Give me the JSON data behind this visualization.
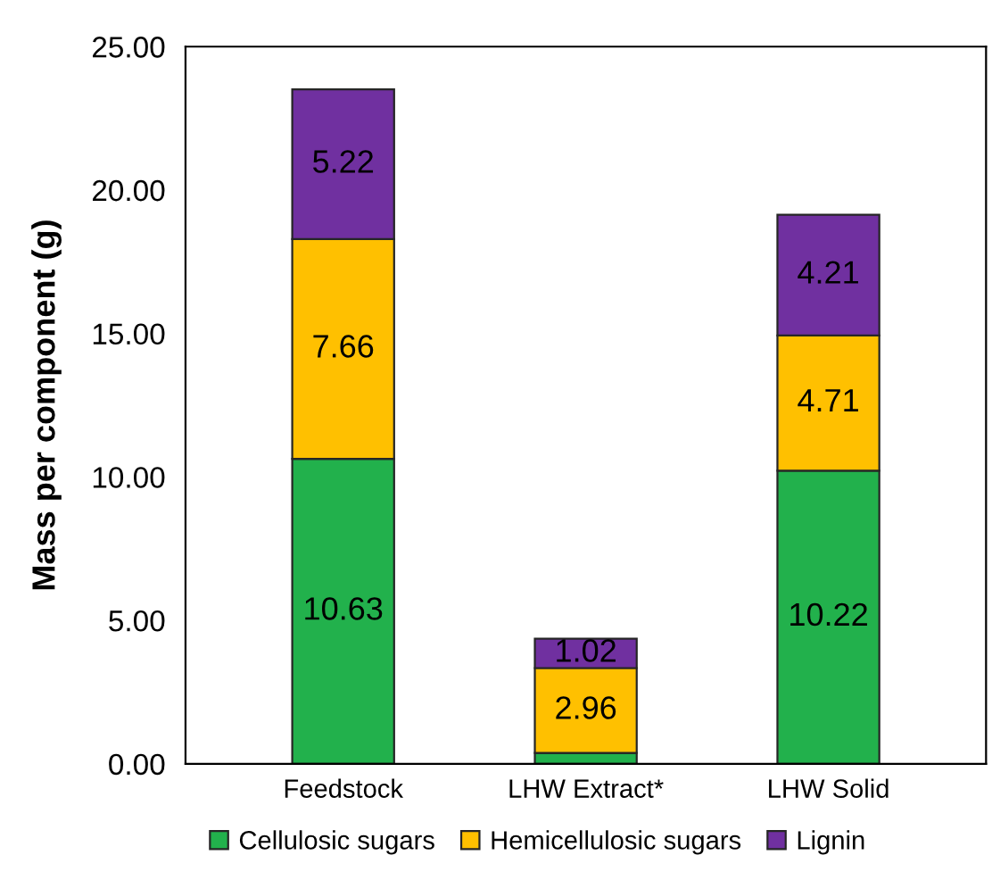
{
  "chart_data": {
    "type": "bar",
    "stacked": true,
    "ylabel": "Mass per component (g)",
    "categories": [
      "Feedstock",
      "LHW Extract*",
      "LHW Solid"
    ],
    "series": [
      {
        "name": "Cellulosic sugars",
        "color": "#22b14c",
        "values": [
          10.63,
          0.38,
          10.22
        ],
        "value_labels": [
          "10.63",
          null,
          "10.22"
        ]
      },
      {
        "name": "Hemicellulosic sugars",
        "color": "#ffc000",
        "values": [
          7.66,
          2.96,
          4.71
        ],
        "value_labels": [
          "7.66",
          "2.96",
          "4.71"
        ]
      },
      {
        "name": "Lignin",
        "color": "#7030a0",
        "values": [
          5.22,
          1.02,
          4.21
        ],
        "value_labels": [
          "5.22",
          "1.02",
          "4.21"
        ]
      }
    ],
    "ylim": [
      0,
      25
    ],
    "yticks": [
      {
        "value": 0,
        "label": "0.00"
      },
      {
        "value": 5,
        "label": "5.00"
      },
      {
        "value": 10,
        "label": "10.00"
      },
      {
        "value": 15,
        "label": "15.00"
      },
      {
        "value": 20,
        "label": "20.00"
      },
      {
        "value": 25,
        "label": "25.00"
      }
    ],
    "grid": false,
    "legend": "bottom"
  }
}
